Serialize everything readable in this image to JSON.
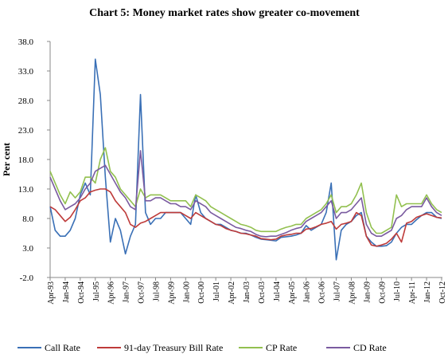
{
  "chart_data": {
    "type": "line",
    "title": "Chart  5: Money market rates show greater co-movement",
    "y_label": "Per cent",
    "categories": [
      "Apr-93",
      null,
      null,
      "Jan-94",
      null,
      null,
      "Oct-94",
      null,
      null,
      "Jul-95",
      null,
      null,
      "Apr-96",
      null,
      null,
      "Jan-97",
      null,
      null,
      "Oct-97",
      null,
      null,
      "Jul-98",
      null,
      null,
      "Apr-99",
      null,
      null,
      "Jan-00",
      null,
      null,
      "Oct-00",
      null,
      null,
      "Jul-01",
      null,
      null,
      "Apr-02",
      null,
      null,
      "Jan-03",
      null,
      null,
      "Oct-03",
      null,
      null,
      "Jul-04",
      null,
      null,
      "Apr-05",
      null,
      null,
      "Jan-06",
      null,
      null,
      "Oct-06",
      null,
      null,
      "Jul-07",
      null,
      null,
      "Apr-08",
      null,
      null,
      "Jan-09",
      null,
      null,
      "Oct-09",
      null,
      null,
      "Jul-10",
      null,
      null,
      "Apr-11",
      null,
      null,
      "Jan-12",
      null,
      null,
      "Oct-12"
    ],
    "series": [
      {
        "name": "Call Rate",
        "color": "#3a70b6",
        "values": [
          10,
          6,
          5,
          5,
          6,
          8,
          12,
          14,
          12,
          35,
          29,
          15,
          4,
          8,
          6,
          2,
          5,
          7,
          29,
          9,
          7,
          8,
          8,
          9,
          9,
          9,
          9,
          8,
          7,
          12,
          9,
          8,
          7.5,
          7,
          7,
          6.5,
          6,
          5.8,
          5.5,
          5.5,
          5.2,
          4.8,
          4.5,
          4.4,
          4.3,
          4.2,
          4.8,
          4.9,
          5,
          5.2,
          5.5,
          6.8,
          6,
          6.5,
          7,
          9,
          14,
          1,
          6,
          7,
          7.5,
          8.5,
          9,
          5,
          4,
          3.3,
          3.3,
          3.4,
          4,
          5.5,
          6.5,
          7,
          7,
          7.8,
          8.5,
          9,
          9,
          8.2,
          8
        ]
      },
      {
        "name": "91-day Treasury Bill Rate",
        "color": "#be3b3a",
        "values": [
          10,
          9.5,
          8.5,
          7.5,
          8.2,
          9.5,
          11,
          11.5,
          12.5,
          12.8,
          13,
          13,
          12.5,
          11,
          10,
          9,
          7,
          6.5,
          7.2,
          7.5,
          8,
          8.5,
          9,
          9,
          9,
          9,
          9,
          8.5,
          8,
          9,
          8.5,
          8,
          7.5,
          7,
          6.8,
          6.3,
          6,
          5.8,
          5.5,
          5.4,
          5.2,
          5,
          4.6,
          4.5,
          4.4,
          4.5,
          5,
          5.2,
          5.3,
          5.5,
          5.5,
          6.2,
          6.3,
          6.6,
          7,
          7.2,
          7.5,
          6.2,
          7,
          7.2,
          7.5,
          9,
          8.5,
          5,
          3.5,
          3.3,
          3.5,
          3.8,
          4.5,
          5.5,
          4,
          7.2,
          7.5,
          8.2,
          8.5,
          8.8,
          8.5,
          8.2,
          8.1
        ]
      },
      {
        "name": "CP Rate",
        "color": "#92c04f",
        "values": [
          16,
          14,
          12,
          10.5,
          12.5,
          11.5,
          12.5,
          15,
          15,
          14,
          18,
          20,
          16,
          15,
          13,
          12,
          11,
          10,
          13,
          11.5,
          12,
          12,
          12,
          11.5,
          11,
          11,
          11,
          11,
          10,
          12,
          11.5,
          11,
          10,
          9.5,
          9,
          8.5,
          8,
          7.5,
          7,
          6.8,
          6.5,
          6,
          5.8,
          5.8,
          5.8,
          5.8,
          6.2,
          6.5,
          6.7,
          7,
          7,
          8,
          8.5,
          9,
          9.5,
          10.5,
          12,
          9,
          10,
          10,
          10.5,
          12,
          14,
          9,
          6.5,
          5.5,
          5.5,
          6,
          6.5,
          12,
          10,
          10.5,
          10.5,
          10.5,
          10.5,
          12,
          10.5,
          9.5,
          9
        ]
      },
      {
        "name": "CD Rate",
        "color": "#7a5ba0",
        "values": [
          15,
          13,
          11,
          9.5,
          10,
          10.5,
          11.5,
          13,
          14,
          16,
          16.5,
          17,
          15.5,
          14,
          12.5,
          11.5,
          10,
          9.5,
          19.5,
          11,
          11,
          11.5,
          11.5,
          11,
          10.5,
          10.5,
          10,
          10,
          9.5,
          11,
          10.5,
          10,
          9,
          8.5,
          8,
          7.5,
          7,
          6.5,
          6.3,
          6,
          5.8,
          5.3,
          5,
          4.9,
          5,
          5,
          5.3,
          5.6,
          6,
          6.3,
          6.5,
          7.5,
          8,
          8.5,
          9,
          10,
          11,
          8,
          9,
          9,
          9.5,
          10.5,
          11.5,
          7,
          5.5,
          5,
          5,
          5.5,
          6,
          8,
          8.5,
          9.5,
          10,
          10,
          10,
          11.5,
          10,
          9,
          8.5
        ]
      }
    ],
    "ylim": [
      -2,
      38
    ],
    "yticks": [
      {
        "value": -2,
        "label": "-2.0"
      },
      {
        "value": 3,
        "label": "3.0"
      },
      {
        "value": 8,
        "label": "8.0"
      },
      {
        "value": 13,
        "label": "13.0"
      },
      {
        "value": 18,
        "label": "18.0"
      },
      {
        "value": 23,
        "label": "23.0"
      },
      {
        "value": 28,
        "label": "28.0"
      },
      {
        "value": 33,
        "label": "33.0"
      },
      {
        "value": 38,
        "label": "38.0"
      }
    ],
    "grid": false,
    "legend": "bottom"
  }
}
